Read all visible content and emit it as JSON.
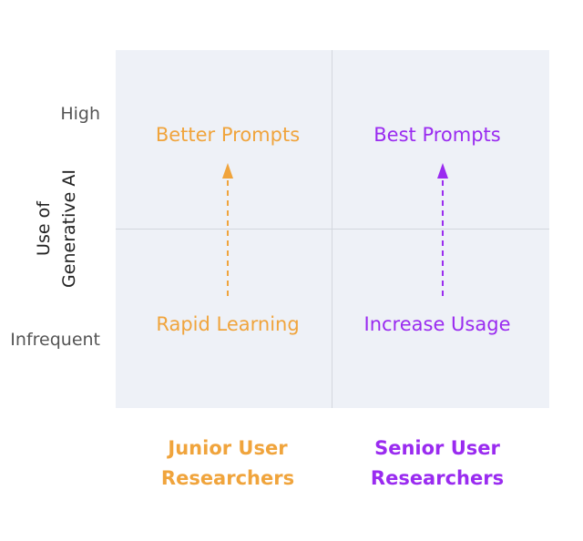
{
  "y_axis": {
    "title_line1": "Use of",
    "title_line2": "Generative AI",
    "tick_high": "High",
    "tick_low": "Infrequent"
  },
  "quadrants": {
    "top_left": "Better Prompts",
    "top_right": "Best Prompts",
    "bottom_left": "Rapid Learning",
    "bottom_right": "Increase Usage"
  },
  "x_axis": {
    "left_line1": "Junior User",
    "left_line2": "Researchers",
    "right_line1": "Senior User",
    "right_line2": "Researchers"
  },
  "colors": {
    "junior": "#f0a43c",
    "senior": "#9a2bf0",
    "background": "#eef1f7",
    "gridline": "#d3d7de"
  },
  "arrows": [
    {
      "from": "Rapid Learning",
      "to": "Better Prompts",
      "style": "dashed",
      "color": "#f0a43c"
    },
    {
      "from": "Increase Usage",
      "to": "Best Prompts",
      "style": "dashed",
      "color": "#9a2bf0"
    }
  ]
}
